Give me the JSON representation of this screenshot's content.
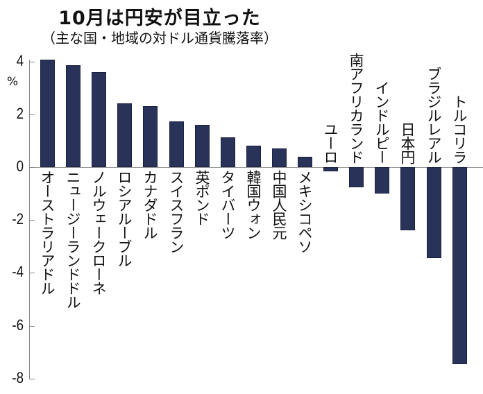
{
  "header": {
    "title": "10月は円安が目立った",
    "subtitle": "（主な国・地域の対ドル通貨騰落率）"
  },
  "axis": {
    "unit": "%",
    "ticks": [
      "4",
      "2",
      "0",
      "-2",
      "-4",
      "-6",
      "-8"
    ]
  },
  "chart_data": {
    "type": "bar",
    "title": "10月は円安が目立った",
    "subtitle": "（主な国・地域の対ドル通貨騰落率）",
    "xlabel": "",
    "ylabel": "%",
    "ylim": [
      -8,
      4
    ],
    "grid": false,
    "categories": [
      "オーストラリアドル",
      "ニュージーランドドル",
      "ノルウェークローネ",
      "ロシアルーブル",
      "カナダドル",
      "スイスフラン",
      "英ポンド",
      "タイバーツ",
      "韓国ウォン",
      "中国人民元",
      "メキシコペソ",
      "ユーロ",
      "南アフリカランド",
      "インドルピー",
      "日本円",
      "ブラジルレアル",
      "トルコリラ"
    ],
    "values": [
      4.07,
      3.87,
      3.6,
      2.42,
      2.32,
      1.73,
      1.6,
      1.13,
      0.82,
      0.71,
      0.4,
      -0.16,
      -0.76,
      -1.0,
      -2.4,
      -3.45,
      -7.45
    ],
    "bar_color": "#29335a"
  }
}
